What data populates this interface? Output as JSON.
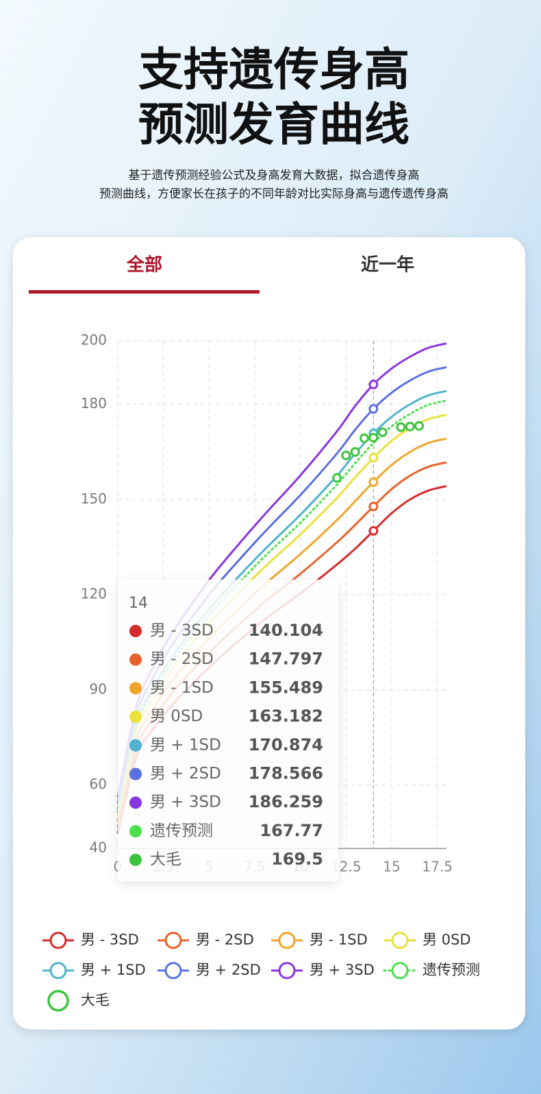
{
  "header": {
    "title": [
      "支持遗传身高",
      "预测发育曲线"
    ],
    "subtitle": [
      "基于遗传预测经验公式及身高发育大数据，拟合遗传身高",
      "预测曲线，方便家长在孩子的不同年龄对比实际身高与遗传遗传身高"
    ]
  },
  "tabs": [
    "全部",
    "近一年"
  ],
  "chart_data": {
    "type": "line",
    "x": [
      0,
      1,
      2,
      3,
      4,
      5,
      6,
      8,
      10,
      12,
      13,
      14,
      15,
      16,
      17,
      18
    ],
    "xlim": [
      0,
      18
    ],
    "xticks": [
      0,
      2.5,
      5,
      7.5,
      10,
      12.5,
      15,
      17.5
    ],
    "ylim": [
      40,
      200
    ],
    "yticks": [
      40,
      60,
      90,
      120,
      150,
      180,
      200
    ],
    "grid": true,
    "series": [
      {
        "name": "男 - 3SD",
        "color": "#d42b2b",
        "values": [
          44.7,
          68.7,
          78.1,
          85.4,
          91.4,
          97.0,
          102.3,
          112.0,
          120.4,
          129.5,
          134.5,
          140.104,
          145.7,
          150.0,
          152.8,
          154.2
        ]
      },
      {
        "name": "男 - 2SD",
        "color": "#e8612a",
        "values": [
          46.6,
          71.3,
          81.4,
          89.2,
          95.6,
          101.6,
          107.2,
          117.5,
          126.6,
          136.5,
          142.0,
          147.797,
          153.3,
          157.5,
          160.3,
          161.7
        ]
      },
      {
        "name": "男 - 1SD",
        "color": "#f0a52a",
        "values": [
          48.5,
          73.9,
          84.7,
          93.0,
          99.8,
          106.2,
          112.1,
          123.0,
          132.8,
          143.5,
          149.5,
          155.489,
          160.9,
          165.0,
          167.8,
          169.2
        ]
      },
      {
        "name": "男  0SD",
        "color": "#e8e23a",
        "values": [
          50.4,
          76.5,
          88.0,
          96.8,
          104.0,
          110.8,
          117.0,
          128.5,
          139.0,
          150.5,
          157.0,
          163.182,
          168.5,
          172.5,
          175.3,
          176.7
        ]
      },
      {
        "name": "男 + 1SD",
        "color": "#4fb3cf",
        "values": [
          52.3,
          79.1,
          91.3,
          100.6,
          108.2,
          115.4,
          121.9,
          134.0,
          145.2,
          157.5,
          164.5,
          170.874,
          176.1,
          180.0,
          182.8,
          184.2
        ]
      },
      {
        "name": "男 + 2SD",
        "color": "#5a6fe0",
        "values": [
          54.2,
          81.7,
          94.6,
          104.4,
          112.4,
          120.0,
          126.8,
          139.5,
          151.4,
          164.5,
          172.0,
          178.566,
          183.7,
          187.5,
          190.3,
          191.7
        ]
      },
      {
        "name": "男 + 3SD",
        "color": "#8a35e0",
        "values": [
          56.1,
          84.3,
          97.9,
          108.2,
          116.6,
          124.6,
          131.7,
          145.0,
          157.6,
          171.5,
          179.5,
          186.259,
          191.3,
          195.0,
          197.8,
          199.2
        ]
      },
      {
        "name": "遗传预测",
        "color": "#4ae04a",
        "style": "dotted",
        "values": [
          51.5,
          78.1,
          90.0,
          99.1,
          106.5,
          113.6,
          119.9,
          131.8,
          142.7,
          154.7,
          161.5,
          167.77,
          173.1,
          177.0,
          179.8,
          181.2
        ]
      },
      {
        "name": "大毛",
        "color": "#3cc43c",
        "style": "points",
        "x": [
          12,
          12.5,
          13,
          13.5,
          14,
          14.5,
          15.5,
          16,
          16.5
        ],
        "values": [
          156.8,
          163.9,
          165.0,
          169.3,
          169.5,
          171.2,
          172.8,
          173.0,
          173.2
        ]
      }
    ]
  }
}
